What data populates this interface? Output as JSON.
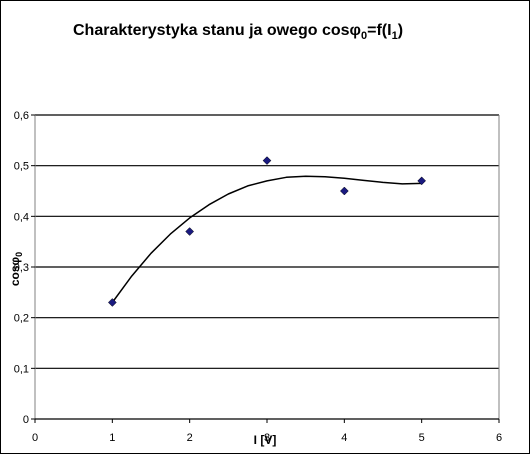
{
  "chart_data": {
    "type": "scatter",
    "title": "Charakterystyka stanu ja owego cosφ",
    "title_sub": "0",
    "title_tail": "=f(I",
    "title_tail_sub": "1",
    "title_end": ")",
    "xlabel": "I [V]",
    "ylabel": "cosφ",
    "ylabel_sub": "0",
    "xlim": [
      0,
      6
    ],
    "ylim": [
      0,
      0.6
    ],
    "x_ticks": [
      0,
      1,
      2,
      3,
      4,
      5,
      6
    ],
    "x_tick_labels": [
      "0",
      "1",
      "2",
      "3",
      "4",
      "5",
      "6"
    ],
    "y_ticks": [
      0,
      0.1,
      0.2,
      0.3,
      0.4,
      0.5,
      0.6
    ],
    "y_tick_labels": [
      "0",
      "0,1",
      "0,2",
      "0,3",
      "0,4",
      "0,5",
      "0,6"
    ],
    "grid": "horizontal",
    "legend": "none",
    "series": [
      {
        "x": [
          1,
          2,
          3,
          4,
          5
        ],
        "y": [
          0.23,
          0.37,
          0.51,
          0.45,
          0.47
        ],
        "marker": "diamond",
        "marker_color": "#1a1a80",
        "trendline": "polynomial",
        "trend_x": [
          1,
          1.25,
          1.5,
          1.75,
          2,
          2.25,
          2.5,
          2.75,
          3,
          3.25,
          3.5,
          3.75,
          4,
          4.25,
          4.5,
          4.75,
          5
        ],
        "trend_y": [
          0.23,
          0.282,
          0.327,
          0.365,
          0.397,
          0.423,
          0.444,
          0.46,
          0.47,
          0.477,
          0.479,
          0.478,
          0.475,
          0.471,
          0.467,
          0.464,
          0.465
        ]
      }
    ],
    "colors": {
      "plot_background": "#ffffff",
      "gridline": "#000000",
      "marker": "#1a1a80",
      "trend": "#000000"
    }
  }
}
